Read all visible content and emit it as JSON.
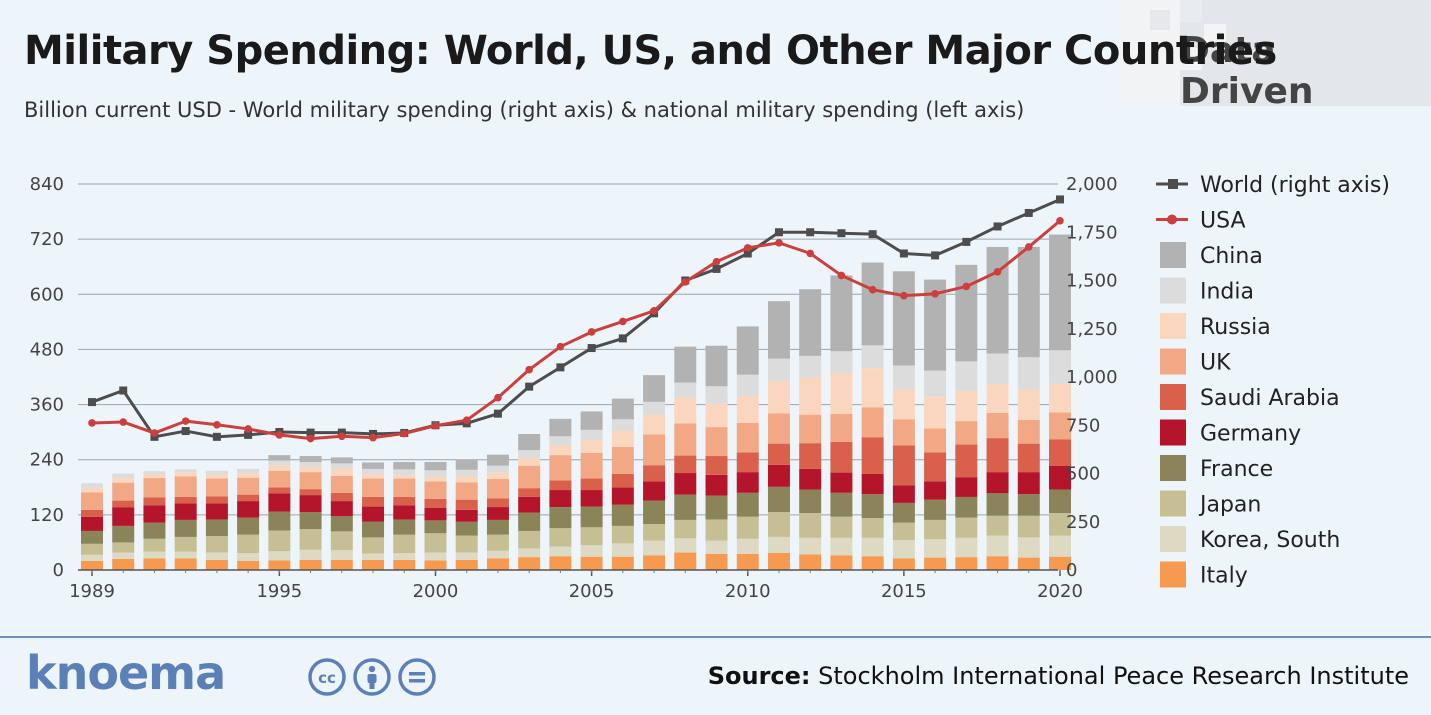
{
  "header": {
    "title": "Military Spending: World, US, and Other Major Countries",
    "subtitle": "Billion current USD - World military spending (right axis) & national military spending (left axis)",
    "brand": "Data Driven"
  },
  "footer": {
    "logo": "knoema",
    "source_label": "Source:",
    "source_text": "Stockholm International Peace Research Institute",
    "license_icons": [
      "cc-icon",
      "attribution-icon",
      "no-derivatives-icon"
    ]
  },
  "chart_data": {
    "type": "bar",
    "stacked": true,
    "grid": true,
    "legend_position": "right",
    "years": [
      1989,
      1990,
      1991,
      1992,
      1993,
      1994,
      1995,
      1996,
      1997,
      1998,
      1999,
      2000,
      2001,
      2002,
      2003,
      2004,
      2005,
      2006,
      2007,
      2008,
      2009,
      2010,
      2011,
      2012,
      2013,
      2014,
      2015,
      2016,
      2017,
      2018,
      2019,
      2020
    ],
    "x_tick_labels": [
      "1989",
      "1995",
      "2000",
      "2005",
      "2010",
      "2015",
      "2020"
    ],
    "left_axis": {
      "min": 0,
      "max": 840,
      "ticks": [
        "0",
        "120",
        "240",
        "360",
        "480",
        "600",
        "720",
        "840"
      ]
    },
    "right_axis": {
      "min": 0,
      "max": 2000,
      "ticks": [
        "0",
        "250",
        "500",
        "750",
        "1,000",
        "1,250",
        "1,500",
        "1,750",
        "2,000"
      ]
    },
    "bar_series": [
      {
        "name": "Italy",
        "color": "#f59a4e",
        "values": [
          20,
          24,
          25,
          25,
          22,
          20,
          21,
          22,
          22,
          22,
          22,
          21,
          22,
          25,
          28,
          30,
          29,
          29,
          32,
          38,
          35,
          35,
          37,
          34,
          32,
          30,
          25,
          27,
          28,
          30,
          27,
          29
        ]
      },
      {
        "name": "Korea, South",
        "color": "#ddd9c3",
        "values": [
          13,
          14,
          15,
          15,
          16,
          17,
          20,
          22,
          21,
          14,
          15,
          17,
          16,
          17,
          19,
          21,
          25,
          29,
          32,
          31,
          29,
          33,
          35,
          36,
          38,
          40,
          40,
          40,
          42,
          45,
          44,
          46
        ]
      },
      {
        "name": "Japan",
        "color": "#c6bf94",
        "values": [
          24,
          22,
          28,
          32,
          36,
          40,
          45,
          45,
          41,
          35,
          40,
          42,
          37,
          35,
          38,
          40,
          39,
          38,
          36,
          40,
          46,
          48,
          54,
          54,
          46,
          43,
          38,
          42,
          44,
          43,
          47,
          49
        ]
      },
      {
        "name": "France",
        "color": "#8a8458",
        "values": [
          28,
          36,
          35,
          37,
          36,
          37,
          41,
          37,
          33,
          34,
          33,
          28,
          30,
          32,
          40,
          46,
          45,
          46,
          51,
          55,
          52,
          52,
          55,
          51,
          52,
          52,
          43,
          44,
          45,
          49,
          47,
          51
        ]
      },
      {
        "name": "Germany",
        "color": "#b5152b",
        "values": [
          31,
          40,
          38,
          36,
          35,
          36,
          40,
          37,
          33,
          33,
          31,
          27,
          26,
          28,
          34,
          37,
          36,
          38,
          42,
          47,
          45,
          45,
          48,
          45,
          44,
          44,
          38,
          40,
          43,
          46,
          48,
          52
        ]
      },
      {
        "name": "Saudi Arabia",
        "color": "#d9604a",
        "values": [
          15,
          15,
          17,
          14,
          15,
          14,
          13,
          13,
          18,
          21,
          18,
          20,
          22,
          19,
          19,
          21,
          25,
          29,
          35,
          38,
          41,
          43,
          46,
          56,
          67,
          80,
          87,
          63,
          71,
          74,
          62,
          57
        ]
      },
      {
        "name": "UK",
        "color": "#f2a884",
        "values": [
          38,
          39,
          42,
          45,
          39,
          37,
          36,
          37,
          37,
          40,
          40,
          38,
          38,
          42,
          49,
          55,
          56,
          59,
          67,
          70,
          63,
          64,
          66,
          62,
          61,
          65,
          57,
          52,
          51,
          55,
          52,
          59
        ]
      },
      {
        "name": "Russia",
        "color": "#fbd6bf",
        "values": [
          10,
          10,
          8,
          8,
          9,
          10,
          12,
          12,
          16,
          10,
          7,
          10,
          12,
          14,
          17,
          21,
          27,
          35,
          43,
          56,
          51,
          59,
          70,
          81,
          88,
          85,
          66,
          70,
          66,
          62,
          65,
          62
        ]
      },
      {
        "name": "India",
        "color": "#dcdcdc",
        "values": [
          10,
          10,
          7,
          7,
          8,
          9,
          10,
          10,
          11,
          11,
          13,
          14,
          15,
          15,
          17,
          20,
          23,
          25,
          28,
          33,
          38,
          46,
          49,
          47,
          48,
          50,
          51,
          56,
          64,
          67,
          71,
          73
        ]
      },
      {
        "name": "China",
        "color": "#b2b2b2",
        "values": [
          0,
          0,
          0,
          0,
          0,
          0,
          12,
          13,
          13,
          14,
          16,
          18,
          22,
          24,
          35,
          38,
          40,
          45,
          58,
          78,
          88,
          105,
          125,
          145,
          165,
          180,
          205,
          198,
          210,
          232,
          240,
          252
        ]
      }
    ],
    "line_series": [
      {
        "name": "World (right axis)",
        "axis": "right",
        "color": "#4d4d4d",
        "marker": "square",
        "values": [
          870,
          930,
          690,
          720,
          690,
          700,
          715,
          712,
          712,
          705,
          710,
          750,
          760,
          810,
          950,
          1050,
          1150,
          1200,
          1330,
          1500,
          1560,
          1640,
          1750,
          1750,
          1745,
          1740,
          1640,
          1630,
          1700,
          1780,
          1850,
          1920
        ]
      },
      {
        "name": "USA",
        "axis": "left",
        "color": "#cc3f3f",
        "marker": "circle",
        "values": [
          320,
          322,
          298,
          324,
          316,
          307,
          294,
          286,
          291,
          288,
          297,
          314,
          326,
          375,
          436,
          486,
          518,
          541,
          564,
          627,
          671,
          701,
          712,
          689,
          641,
          610,
          597,
          601,
          617,
          649,
          703,
          760
        ]
      }
    ],
    "legend_order": [
      "World (right axis)",
      "USA",
      "China",
      "India",
      "Russia",
      "UK",
      "Saudi Arabia",
      "Germany",
      "France",
      "Japan",
      "Korea, South",
      "Italy"
    ]
  }
}
